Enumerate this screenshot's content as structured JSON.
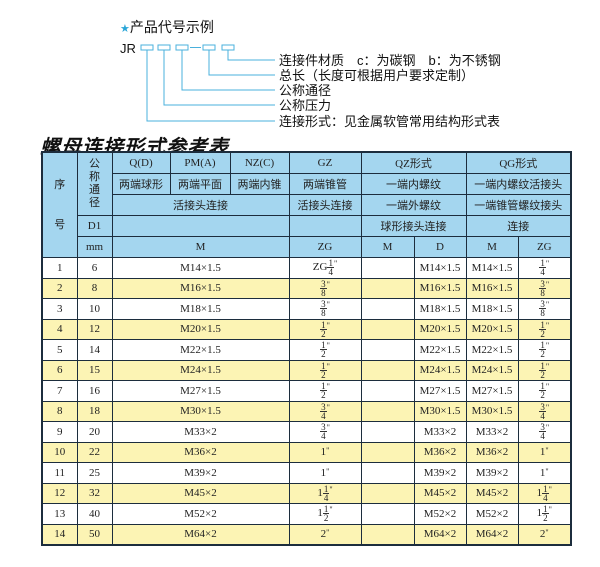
{
  "diagram": {
    "star_icon": "★",
    "star_color": "#2aa6d8",
    "heading": "产品代号示例",
    "code_prefix": "JR",
    "dash": "-",
    "labels": [
      "连接件材质　c：为碳钢　b：为不锈钢",
      "总长（长度可根据用户要求定制）",
      "公称通径",
      "公称压力",
      "连接形式：见金属软管常用结构形式表"
    ]
  },
  "table_title": "螺母连接形式参考表",
  "header": {
    "seq": "序号",
    "nominal": "公称通径",
    "q": "Q(D)",
    "pm": "PM(A)",
    "nz": "NZ(C)",
    "gz": "GZ",
    "qz": "QZ形式",
    "qg": "QG形式",
    "q2": "两端球形",
    "pm2": "两端平面",
    "nz2": "两端内锥",
    "gz2": "两端锥管",
    "qz2": "一端内螺纹",
    "qg2": "一端内螺纹活接头",
    "qpmnz3": "活接头连接",
    "gz3": "活接头连接",
    "qz3": "一端外螺纹",
    "qg3": "一端锥管螺纹接头",
    "d1": "D1",
    "qz4": "球形接头连接",
    "qg4": "连接",
    "mm": "mm",
    "m": "M",
    "zg": "ZG",
    "qz_m": "M",
    "qz_d": "D",
    "qg_m": "M",
    "qg_zg": "ZG"
  },
  "colors": {
    "header_bg": "#a4d6ef",
    "stripe": "#fcf4b4",
    "border": "#1c2d3d"
  },
  "rows": [
    {
      "no": "1",
      "dn": "6",
      "m": "M14×1.5",
      "gz": {
        "pre": "ZG",
        "whole": "",
        "num": "1",
        "den": "4",
        "unit": "\""
      },
      "qz_m": "",
      "qz_d": "M14×1.5",
      "qg_m": "M14×1.5",
      "qg_zg": {
        "pre": "",
        "whole": "",
        "num": "1",
        "den": "4",
        "unit": "\""
      }
    },
    {
      "no": "2",
      "dn": "8",
      "m": "M16×1.5",
      "gz": {
        "pre": "",
        "whole": "",
        "num": "3",
        "den": "8",
        "unit": "\""
      },
      "qz_m": "",
      "qz_d": "M16×1.5",
      "qg_m": "M16×1.5",
      "qg_zg": {
        "pre": "",
        "whole": "",
        "num": "3",
        "den": "8",
        "unit": "\""
      }
    },
    {
      "no": "3",
      "dn": "10",
      "m": "M18×1.5",
      "gz": {
        "pre": "",
        "whole": "",
        "num": "3",
        "den": "8",
        "unit": "\""
      },
      "qz_m": "",
      "qz_d": "M18×1.5",
      "qg_m": "M18×1.5",
      "qg_zg": {
        "pre": "",
        "whole": "",
        "num": "3",
        "den": "8",
        "unit": "\""
      }
    },
    {
      "no": "4",
      "dn": "12",
      "m": "M20×1.5",
      "gz": {
        "pre": "",
        "whole": "",
        "num": "1",
        "den": "2",
        "unit": "\""
      },
      "qz_m": "",
      "qz_d": "M20×1.5",
      "qg_m": "M20×1.5",
      "qg_zg": {
        "pre": "",
        "whole": "",
        "num": "1",
        "den": "2",
        "unit": "\""
      }
    },
    {
      "no": "5",
      "dn": "14",
      "m": "M22×1.5",
      "gz": {
        "pre": "",
        "whole": "",
        "num": "1",
        "den": "2",
        "unit": "\""
      },
      "qz_m": "",
      "qz_d": "M22×1.5",
      "qg_m": "M22×1.5",
      "qg_zg": {
        "pre": "",
        "whole": "",
        "num": "1",
        "den": "2",
        "unit": "\""
      }
    },
    {
      "no": "6",
      "dn": "15",
      "m": "M24×1.5",
      "gz": {
        "pre": "",
        "whole": "",
        "num": "1",
        "den": "2",
        "unit": "\""
      },
      "qz_m": "",
      "qz_d": "M24×1.5",
      "qg_m": "M24×1.5",
      "qg_zg": {
        "pre": "",
        "whole": "",
        "num": "1",
        "den": "2",
        "unit": "\""
      }
    },
    {
      "no": "7",
      "dn": "16",
      "m": "M27×1.5",
      "gz": {
        "pre": "",
        "whole": "",
        "num": "1",
        "den": "2",
        "unit": "\""
      },
      "qz_m": "",
      "qz_d": "M27×1.5",
      "qg_m": "M27×1.5",
      "qg_zg": {
        "pre": "",
        "whole": "",
        "num": "1",
        "den": "2",
        "unit": "\""
      }
    },
    {
      "no": "8",
      "dn": "18",
      "m": "M30×1.5",
      "gz": {
        "pre": "",
        "whole": "",
        "num": "3",
        "den": "4",
        "unit": "\""
      },
      "qz_m": "",
      "qz_d": "M30×1.5",
      "qg_m": "M30×1.5",
      "qg_zg": {
        "pre": "",
        "whole": "",
        "num": "3",
        "den": "4",
        "unit": "\""
      }
    },
    {
      "no": "9",
      "dn": "20",
      "m": "M33×2",
      "gz": {
        "pre": "",
        "whole": "",
        "num": "3",
        "den": "4",
        "unit": "\""
      },
      "qz_m": "",
      "qz_d": "M33×2",
      "qg_m": "M33×2",
      "qg_zg": {
        "pre": "",
        "whole": "",
        "num": "3",
        "den": "4",
        "unit": "\""
      }
    },
    {
      "no": "10",
      "dn": "22",
      "m": "M36×2",
      "gz": {
        "pre": "",
        "whole": "1",
        "num": "",
        "den": "",
        "unit": "\""
      },
      "qz_m": "",
      "qz_d": "M36×2",
      "qg_m": "M36×2",
      "qg_zg": {
        "pre": "",
        "whole": "1",
        "num": "",
        "den": "",
        "unit": "\""
      }
    },
    {
      "no": "11",
      "dn": "25",
      "m": "M39×2",
      "gz": {
        "pre": "",
        "whole": "1",
        "num": "",
        "den": "",
        "unit": "\""
      },
      "qz_m": "",
      "qz_d": "M39×2",
      "qg_m": "M39×2",
      "qg_zg": {
        "pre": "",
        "whole": "1",
        "num": "",
        "den": "",
        "unit": "\""
      }
    },
    {
      "no": "12",
      "dn": "32",
      "m": "M45×2",
      "gz": {
        "pre": "",
        "whole": "1",
        "num": "1",
        "den": "4",
        "unit": "\""
      },
      "qz_m": "",
      "qz_d": "M45×2",
      "qg_m": "M45×2",
      "qg_zg": {
        "pre": "",
        "whole": "1",
        "num": "1",
        "den": "4",
        "unit": "\""
      }
    },
    {
      "no": "13",
      "dn": "40",
      "m": "M52×2",
      "gz": {
        "pre": "",
        "whole": "1",
        "num": "1",
        "den": "2",
        "unit": "\""
      },
      "qz_m": "",
      "qz_d": "M52×2",
      "qg_m": "M52×2",
      "qg_zg": {
        "pre": "",
        "whole": "1",
        "num": "1",
        "den": "2",
        "unit": "\""
      }
    },
    {
      "no": "14",
      "dn": "50",
      "m": "M64×2",
      "gz": {
        "pre": "",
        "whole": "2",
        "num": "",
        "den": "",
        "unit": "\""
      },
      "qz_m": "",
      "qz_d": "M64×2",
      "qg_m": "M64×2",
      "qg_zg": {
        "pre": "",
        "whole": "2",
        "num": "",
        "den": "",
        "unit": "\""
      }
    }
  ]
}
